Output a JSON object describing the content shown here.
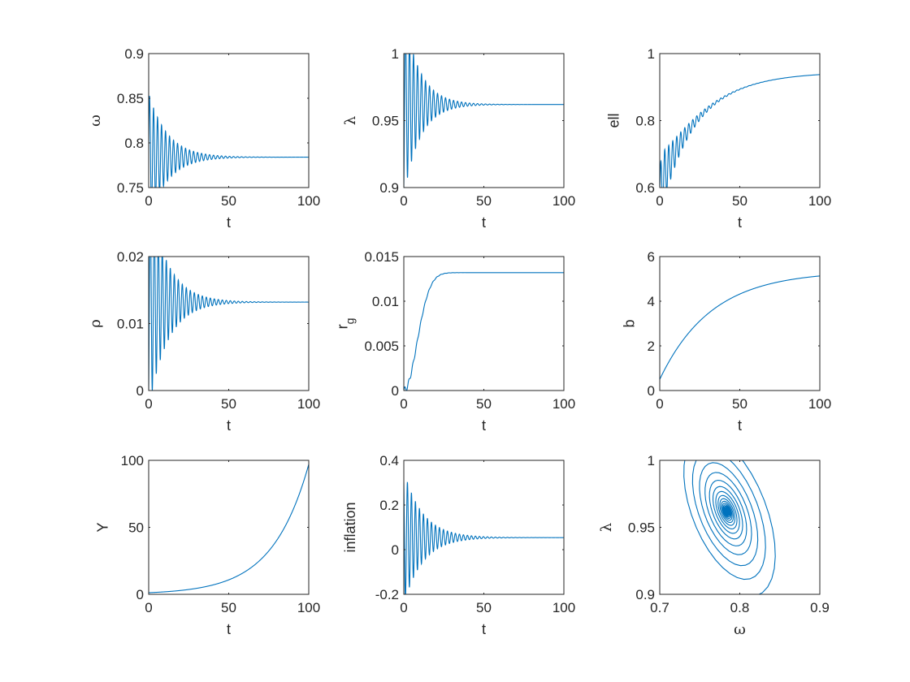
{
  "figure": {
    "series_color": "#0072BD"
  },
  "chart_data": [
    {
      "type": "line",
      "xlabel": "t",
      "ylabel": "ω",
      "xlim": [
        0,
        100
      ],
      "ylim": [
        0.75,
        0.9
      ],
      "xticks": [
        0,
        50,
        100
      ],
      "xtick_labels": [
        "0",
        "50",
        "100"
      ],
      "yticks": [
        0.75,
        0.8,
        0.85,
        0.9
      ],
      "ytick_labels": [
        "0.75",
        "0.8",
        "0.85",
        "0.9"
      ],
      "series": [
        {
          "model": "damped",
          "start": 0.8,
          "final": 0.784,
          "amplitude": 0.07,
          "period": 2.5,
          "decay": 0.085,
          "duration": 100
        }
      ]
    },
    {
      "type": "line",
      "xlabel": "t",
      "ylabel": "λ",
      "xlim": [
        0,
        100
      ],
      "ylim": [
        0.9,
        1
      ],
      "xticks": [
        0,
        50,
        100
      ],
      "xtick_labels": [
        "0",
        "50",
        "100"
      ],
      "yticks": [
        0.9,
        0.95,
        1
      ],
      "ytick_labels": [
        "0.9",
        "0.95",
        "1"
      ],
      "series": [
        {
          "model": "damped",
          "start": 0.9,
          "final": 0.962,
          "amplitude": 0.03,
          "period": 2.5,
          "decay": 0.1,
          "duration": 100
        }
      ]
    },
    {
      "type": "line",
      "xlabel": "t",
      "ylabel": "ell",
      "xlim": [
        0,
        100
      ],
      "ylim": [
        0.6,
        1
      ],
      "xticks": [
        0,
        50,
        100
      ],
      "xtick_labels": [
        "0",
        "50",
        "100"
      ],
      "yticks": [
        0.6,
        0.8,
        1
      ],
      "ytick_labels": [
        "0.6",
        "0.8",
        "1"
      ],
      "series": [
        {
          "model": "rise-osc",
          "start": 0.6,
          "final": 0.945,
          "rate": 0.038,
          "amplitude": 0.1,
          "period": 2.5,
          "decay": 0.09,
          "duration": 100
        }
      ]
    },
    {
      "type": "line",
      "xlabel": "t",
      "ylabel": "ρ",
      "xlim": [
        0,
        100
      ],
      "ylim": [
        0,
        0.02
      ],
      "xticks": [
        0,
        50,
        100
      ],
      "xtick_labels": [
        "0",
        "50",
        "100"
      ],
      "yticks": [
        0,
        0.01,
        0.02
      ],
      "ytick_labels": [
        "0",
        "0.01",
        "0.02"
      ],
      "series": [
        {
          "model": "damped",
          "start": 0,
          "final": 0.0132,
          "amplitude": 0.009,
          "period": 2.5,
          "decay": 0.085,
          "duration": 100
        }
      ]
    },
    {
      "type": "line",
      "xlabel": "t",
      "ylabel": "r",
      "ylabel_sub": "g",
      "xlim": [
        0,
        100
      ],
      "ylim": [
        0,
        0.015
      ],
      "xticks": [
        0,
        50,
        100
      ],
      "xtick_labels": [
        "0",
        "50",
        "100"
      ],
      "yticks": [
        0,
        0.005,
        0.01,
        0.015
      ],
      "ytick_labels": [
        "0",
        "0.005",
        "0.01",
        "0.015"
      ],
      "series": [
        {
          "model": "sigmoid",
          "start": 0,
          "final": 0.0132,
          "midpoint": 12,
          "width": 4.5,
          "ripple": 0.0004,
          "period": 2.5,
          "duration": 100
        }
      ]
    },
    {
      "type": "line",
      "xlabel": "t",
      "ylabel": "b",
      "xlim": [
        0,
        100
      ],
      "ylim": [
        0,
        6
      ],
      "xticks": [
        0,
        50,
        100
      ],
      "xtick_labels": [
        "0",
        "50",
        "100"
      ],
      "yticks": [
        0,
        2,
        4,
        6
      ],
      "ytick_labels": [
        "0",
        "2",
        "4",
        "6"
      ],
      "series": [
        {
          "model": "saturate",
          "start": 0.5,
          "final": 5.35,
          "rate": 0.031,
          "duration": 100
        }
      ]
    },
    {
      "type": "line",
      "xlabel": "t",
      "ylabel": "Y",
      "xlim": [
        0,
        100
      ],
      "ylim": [
        0,
        100
      ],
      "xticks": [
        0,
        50,
        100
      ],
      "xtick_labels": [
        "0",
        "50",
        "100"
      ],
      "yticks": [
        0,
        50,
        100
      ],
      "ytick_labels": [
        "0",
        "50",
        "100"
      ],
      "series": [
        {
          "model": "exponential",
          "start": 1.2,
          "final": 97,
          "duration": 100
        }
      ]
    },
    {
      "type": "line",
      "xlabel": "t",
      "ylabel": "inflation",
      "xlim": [
        0,
        100
      ],
      "ylim": [
        -0.2,
        0.4
      ],
      "xticks": [
        0,
        50,
        100
      ],
      "xtick_labels": [
        "0",
        "50",
        "100"
      ],
      "yticks": [
        -0.2,
        0,
        0.2,
        0.4
      ],
      "ytick_labels": [
        "-0.2",
        "0",
        "0.2",
        "0.4"
      ],
      "series": [
        {
          "model": "damped-cos",
          "final": 0.054,
          "amplitude": 0.3,
          "period": 2.5,
          "decay": 0.085,
          "duration": 100
        }
      ]
    },
    {
      "type": "line",
      "xlabel": "ω",
      "ylabel": "λ",
      "xlim": [
        0.7,
        0.9
      ],
      "ylim": [
        0.9,
        1
      ],
      "xticks": [
        0.7,
        0.8,
        0.9
      ],
      "xtick_labels": [
        "0.7",
        "0.8",
        "0.9"
      ],
      "yticks": [
        0.9,
        0.95,
        1
      ],
      "ytick_labels": [
        "0.9",
        "0.95",
        "1"
      ],
      "series": [
        {
          "model": "spiral",
          "center": [
            0.784,
            0.962
          ],
          "start": [
            0.8,
            0.9
          ],
          "decay": 0.09,
          "period": 2.5,
          "duration": 100
        }
      ]
    }
  ]
}
